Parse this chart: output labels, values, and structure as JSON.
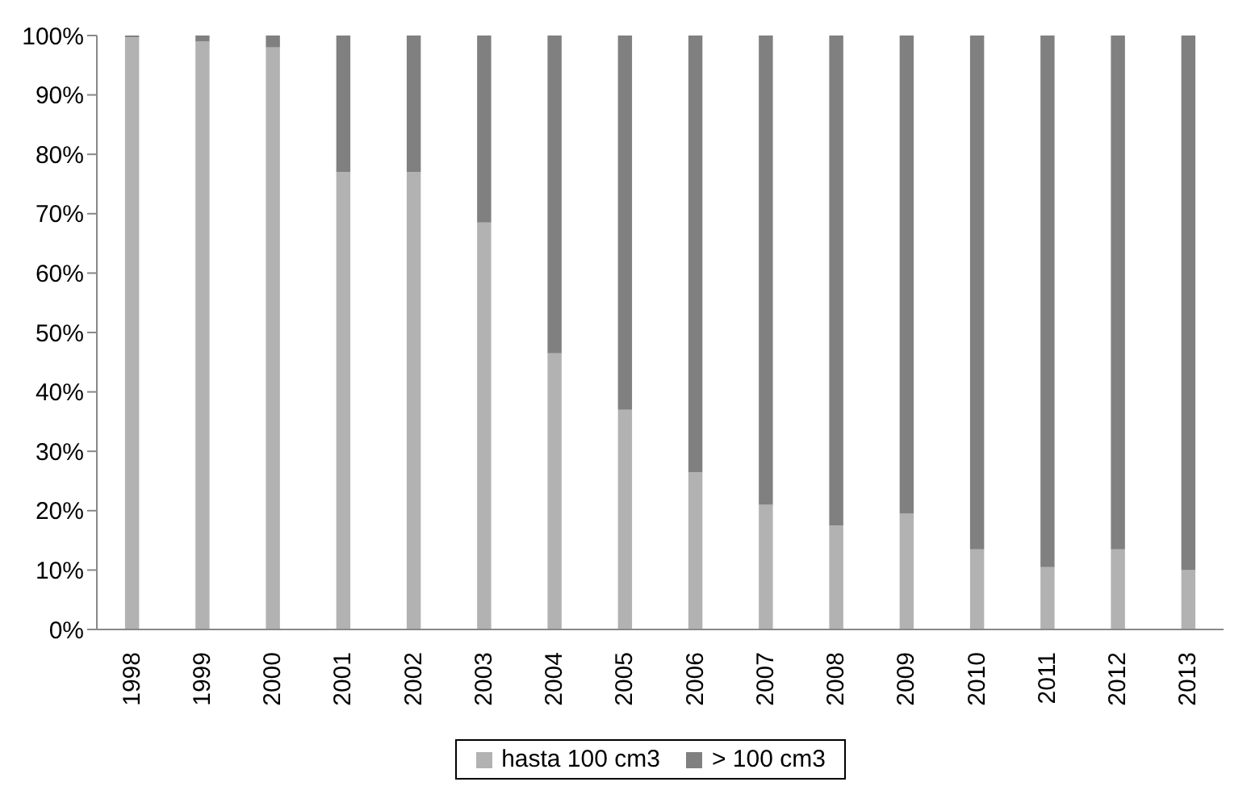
{
  "chart_data": {
    "type": "bar",
    "stacked": true,
    "categories": [
      "1998",
      "1999",
      "2000",
      "2001",
      "2002",
      "2003",
      "2004",
      "2005",
      "2006",
      "2007",
      "2008",
      "2009",
      "2010",
      "2011",
      "2012",
      "2013"
    ],
    "series": [
      {
        "name": "hasta 100 cm3",
        "color": "#b2b2b2",
        "values": [
          99.7,
          99,
          98,
          77,
          77,
          68.5,
          46.5,
          37,
          26.5,
          21,
          17.5,
          19.5,
          13.5,
          10.5,
          13.5,
          10
        ]
      },
      {
        "name": "> 100 cm3",
        "color": "#808080",
        "values": [
          0.3,
          1,
          2,
          23,
          23,
          31.5,
          53.5,
          63,
          73.5,
          79,
          82.5,
          80.5,
          86.5,
          89.5,
          86.5,
          90
        ]
      }
    ],
    "ylim": [
      0,
      100
    ],
    "yticks": [
      {
        "value": 0,
        "label": "0%"
      },
      {
        "value": 10,
        "label": "10%"
      },
      {
        "value": 20,
        "label": "20%"
      },
      {
        "value": 30,
        "label": "30%"
      },
      {
        "value": 40,
        "label": "40%"
      },
      {
        "value": 50,
        "label": "50%"
      },
      {
        "value": 60,
        "label": "60%"
      },
      {
        "value": 70,
        "label": "70%"
      },
      {
        "value": 80,
        "label": "80%"
      },
      {
        "value": 90,
        "label": "90%"
      },
      {
        "value": 100,
        "label": "100%"
      }
    ],
    "legend": "bottom"
  }
}
